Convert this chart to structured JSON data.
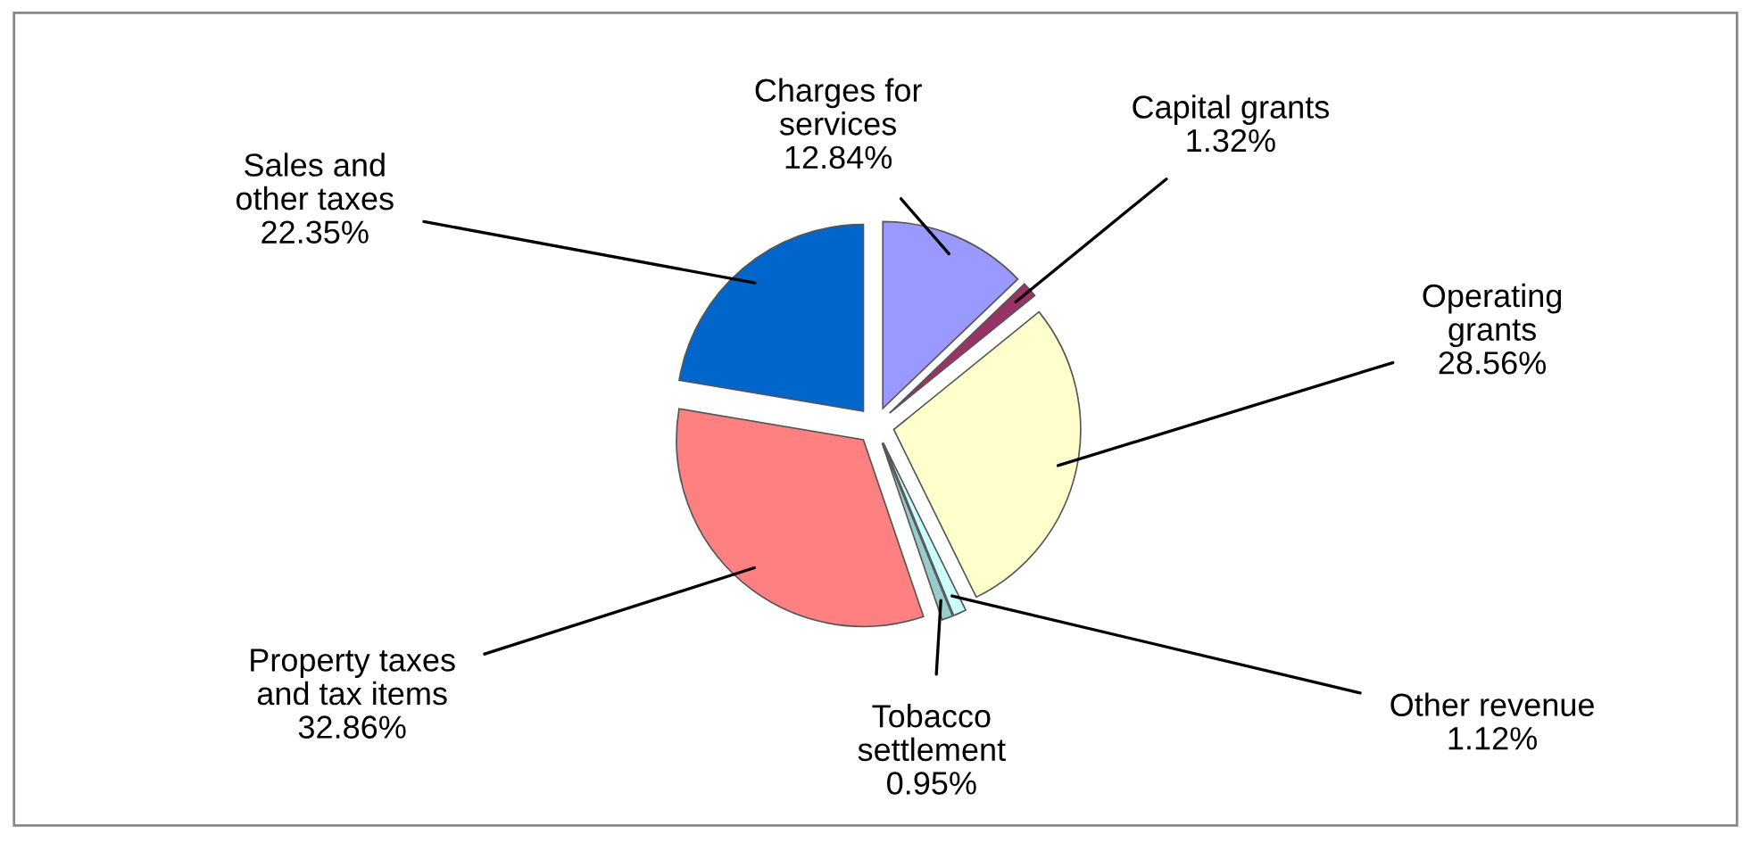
{
  "chart_data": {
    "type": "pie",
    "categories": [
      "Charges for services",
      "Capital grants",
      "Operating grants",
      "Other revenue",
      "Tobacco settlement",
      "Property taxes and tax items",
      "Sales and other taxes"
    ],
    "values": [
      12.84,
      1.32,
      28.56,
      1.12,
      0.95,
      32.86,
      22.35
    ],
    "value_labels": [
      "12.84%",
      "1.32%",
      "28.56%",
      "1.12%",
      "0.95%",
      "32.86%",
      "22.35%"
    ],
    "colors": [
      "#9999ff",
      "#993366",
      "#ffffcc",
      "#ccffff",
      "#99cccc",
      "#ff8080",
      "#0066cc"
    ]
  }
}
